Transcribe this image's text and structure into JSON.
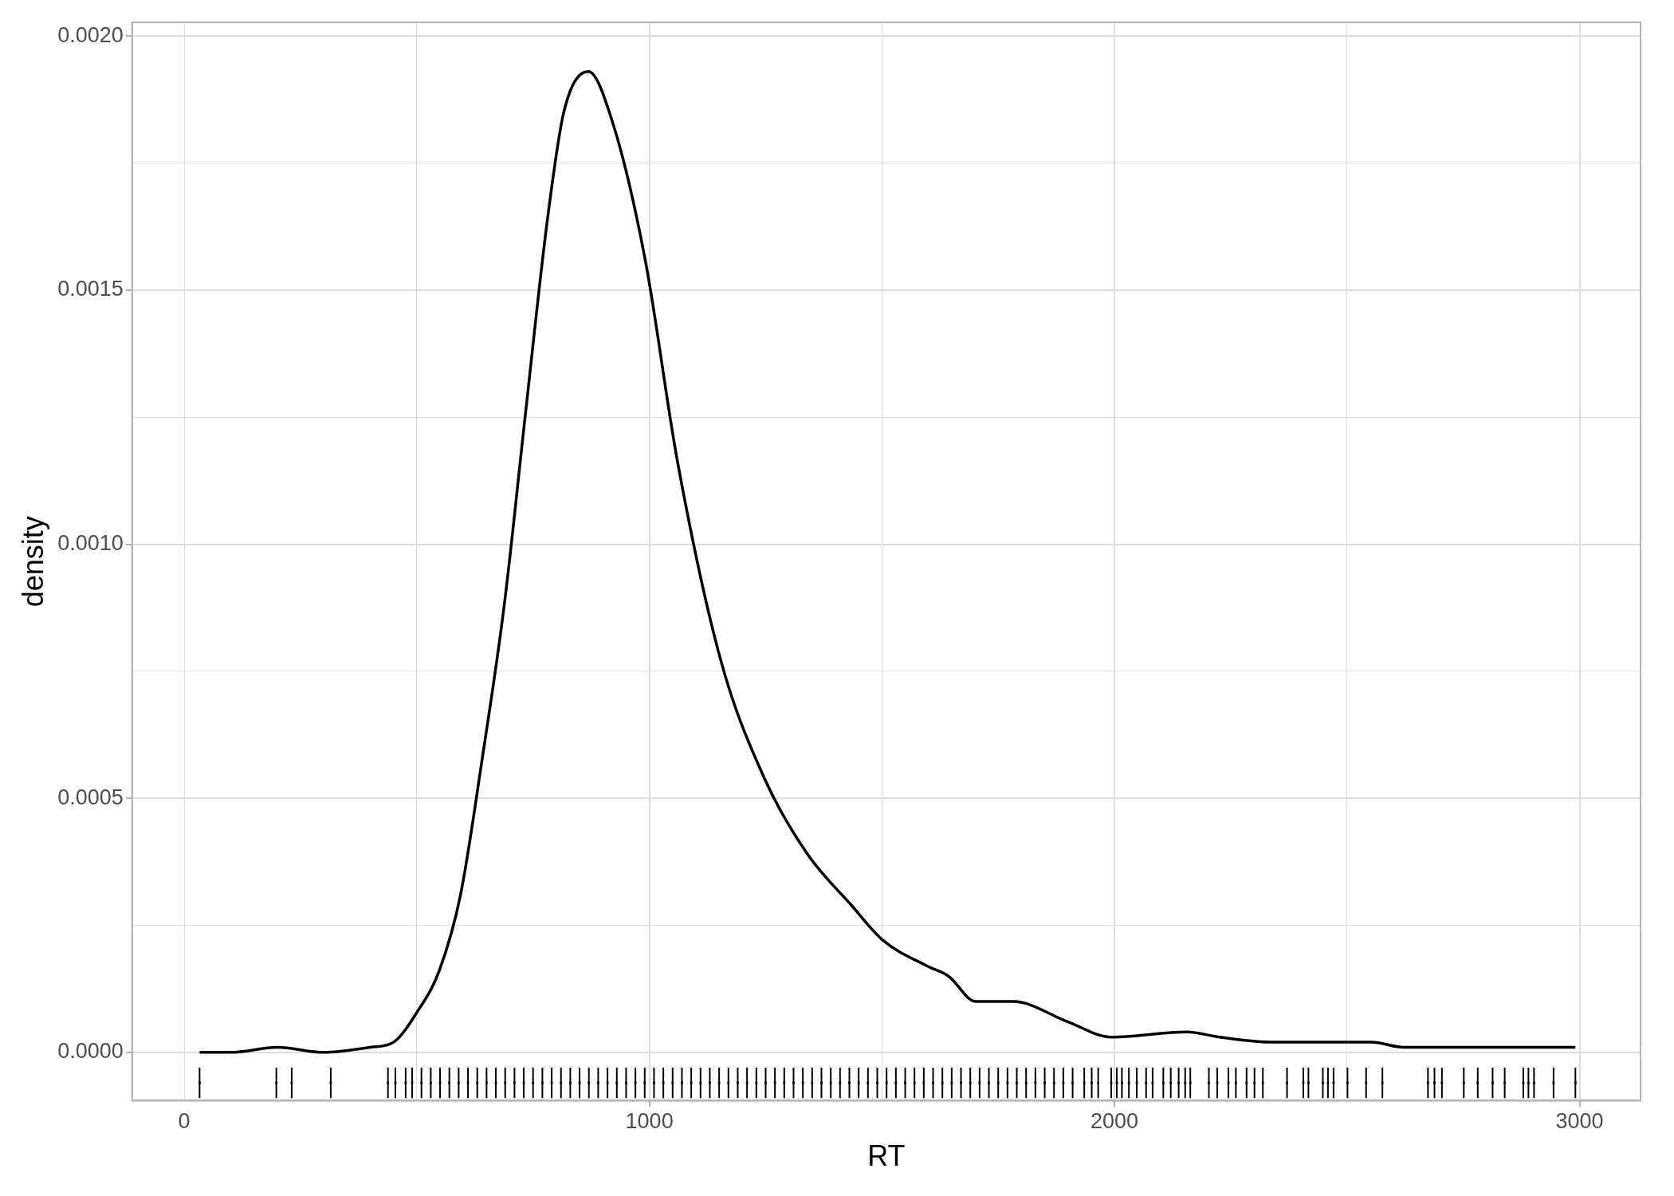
{
  "chart_data": {
    "type": "line",
    "xlabel": "RT",
    "ylabel": "density",
    "grid": true,
    "legend": false,
    "marker": "none",
    "line_style": "solid",
    "xlim": [
      -112,
      3131
    ],
    "ylim": [
      -9.5e-05,
      0.002027
    ],
    "xticks": [
      0,
      {
        "value": 500,
        "label": null
      },
      1000,
      {
        "value": 1500,
        "label": null
      },
      2000,
      {
        "value": 2500,
        "label": null
      },
      3000
    ],
    "yticks": [
      {
        "value": 0,
        "label": "0.0000"
      },
      {
        "value": 0.00025,
        "label": null
      },
      {
        "value": 0.0005,
        "label": "0.0005"
      },
      {
        "value": 0.00075,
        "label": null
      },
      {
        "value": 0.001,
        "label": "0.0010"
      },
      {
        "value": 0.00125,
        "label": null
      },
      {
        "value": 0.0015,
        "label": "0.0015"
      },
      {
        "value": 0.00175,
        "label": null
      },
      {
        "value": 0.002,
        "label": "0.0020"
      }
    ],
    "series": [
      {
        "color": "#000000",
        "x": [
          33,
          100,
          200,
          300,
          400,
          450,
          501,
          548,
          594,
          641,
          688,
          734,
          781,
          816,
          869,
          921,
          991,
          1061,
          1154,
          1247,
          1340,
          1434,
          1503,
          1597,
          1643,
          1702,
          1783,
          1900,
          1993,
          2156,
          2226,
          2343,
          2413,
          2552,
          2622,
          2692,
          2832,
          2895,
          2991
        ],
        "values": [
          0,
          0,
          1e-05,
          0,
          1e-05,
          2e-05,
          8e-05,
          0.00016,
          0.00031,
          0.00058,
          0.00088,
          0.00126,
          0.00164,
          0.00185,
          0.00193,
          0.00183,
          0.00156,
          0.00116,
          0.00077,
          0.00054,
          0.00039,
          0.00029,
          0.00022,
          0.00017,
          0.00015,
          0.0001,
          0.0001,
          6e-05,
          3e-05,
          4e-05,
          3e-05,
          2e-05,
          2e-05,
          2e-05,
          1e-05,
          1e-05,
          1e-05,
          1e-05,
          1e-05
        ]
      },
      {
        "type": "scatter",
        "color": "#000000",
        "marker": "square",
        "errors": [
          3e-05,
          3e-05,
          3e-05,
          3e-05,
          3e-05,
          3e-05,
          3e-05,
          3e-05,
          3e-05,
          3e-05,
          3e-05,
          3e-05,
          3e-05,
          3e-05,
          3e-05,
          3e-05,
          3e-05,
          3e-05,
          3e-05,
          3e-05,
          3e-05,
          3e-05,
          3e-05,
          3e-05,
          3e-05,
          3e-05,
          3e-05,
          3e-05,
          3e-05,
          3e-05,
          3e-05,
          3e-05,
          3e-05,
          3e-05,
          3e-05,
          3e-05,
          3e-05,
          3e-05,
          3e-05,
          3e-05,
          3e-05,
          3e-05,
          3e-05,
          3e-05,
          3e-05,
          3e-05,
          3e-05,
          3e-05,
          3e-05,
          3e-05,
          3e-05,
          3e-05,
          3e-05,
          3e-05,
          3e-05,
          3e-05,
          3e-05,
          3e-05,
          3e-05,
          3e-05,
          3e-05,
          3e-05,
          3e-05,
          3e-05,
          3e-05,
          3e-05,
          3e-05,
          3e-05,
          3e-05,
          3e-05,
          3e-05,
          3e-05,
          3e-05,
          3e-05,
          3e-05,
          3e-05,
          3e-05,
          3e-05,
          3e-05,
          3e-05,
          3e-05,
          3e-05,
          3e-05,
          3e-05,
          3e-05,
          3e-05,
          3e-05,
          3e-05,
          3e-05,
          3e-05,
          3e-05,
          3e-05,
          3e-05,
          3e-05,
          3e-05,
          3e-05,
          3e-05,
          3e-05,
          3e-05,
          3e-05,
          3e-05,
          3e-05,
          3e-05,
          3e-05,
          3e-05,
          3e-05,
          3e-05,
          3e-05,
          3e-05,
          3e-05,
          3e-05,
          3e-05,
          3e-05,
          3e-05,
          3e-05,
          3e-05,
          3e-05,
          3e-05,
          3e-05,
          3e-05,
          3e-05,
          3e-05
        ],
        "x": [
          33,
          198,
          231,
          315,
          438,
          454,
          476,
          490,
          510,
          530,
          550,
          570,
          590,
          610,
          630,
          650,
          670,
          690,
          710,
          730,
          750,
          770,
          790,
          810,
          830,
          850,
          870,
          890,
          910,
          930,
          950,
          970,
          990,
          1010,
          1030,
          1050,
          1070,
          1090,
          1110,
          1130,
          1150,
          1170,
          1190,
          1210,
          1230,
          1250,
          1270,
          1290,
          1310,
          1330,
          1350,
          1370,
          1390,
          1410,
          1430,
          1450,
          1470,
          1490,
          1510,
          1530,
          1550,
          1570,
          1590,
          1610,
          1630,
          1650,
          1670,
          1690,
          1710,
          1730,
          1750,
          1770,
          1790,
          1810,
          1830,
          1850,
          1870,
          1890,
          1910,
          1935,
          1951,
          1965,
          1993,
          2005,
          2016,
          2031,
          2048,
          2068,
          2082,
          2105,
          2121,
          2138,
          2152,
          2163,
          2203,
          2221,
          2245,
          2261,
          2284,
          2301,
          2319,
          2371,
          2406,
          2417,
          2448,
          2459,
          2471,
          2501,
          2541,
          2576,
          2674,
          2688,
          2704,
          2751,
          2781,
          2813,
          2839,
          2879,
          2890,
          2902,
          2944,
          2991
        ],
        "values": [
          -6e-05,
          -6e-05,
          -6e-05,
          -6e-05,
          -6e-05,
          -6e-05,
          -6e-05,
          -6e-05,
          -6e-05,
          -6e-05,
          -6e-05,
          -6e-05,
          -6e-05,
          -6e-05,
          -6e-05,
          -6e-05,
          -6e-05,
          -6e-05,
          -6e-05,
          -6e-05,
          -6e-05,
          -6e-05,
          -6e-05,
          -6e-05,
          -6e-05,
          -6e-05,
          -6e-05,
          -6e-05,
          -6e-05,
          -6e-05,
          -6e-05,
          -6e-05,
          -6e-05,
          -6e-05,
          -6e-05,
          -6e-05,
          -6e-05,
          -6e-05,
          -6e-05,
          -6e-05,
          -6e-05,
          -6e-05,
          -6e-05,
          -6e-05,
          -6e-05,
          -6e-05,
          -6e-05,
          -6e-05,
          -6e-05,
          -6e-05,
          -6e-05,
          -6e-05,
          -6e-05,
          -6e-05,
          -6e-05,
          -6e-05,
          -6e-05,
          -6e-05,
          -6e-05,
          -6e-05,
          -6e-05,
          -6e-05,
          -6e-05,
          -6e-05,
          -6e-05,
          -6e-05,
          -6e-05,
          -6e-05,
          -6e-05,
          -6e-05,
          -6e-05,
          -6e-05,
          -6e-05,
          -6e-05,
          -6e-05,
          -6e-05,
          -6e-05,
          -6e-05,
          -6e-05,
          -6e-05,
          -6e-05,
          -6e-05,
          -6e-05,
          -6e-05,
          -6e-05,
          -6e-05,
          -6e-05,
          -6e-05,
          -6e-05,
          -6e-05,
          -6e-05,
          -6e-05,
          -6e-05,
          -6e-05,
          -6e-05,
          -6e-05,
          -6e-05,
          -6e-05,
          -6e-05,
          -6e-05,
          -6e-05,
          -6e-05,
          -6e-05,
          -6e-05,
          -6e-05,
          -6e-05,
          -6e-05,
          -6e-05,
          -6e-05,
          -6e-05,
          -6e-05,
          -6e-05,
          -6e-05,
          -6e-05,
          -6e-05,
          -6e-05,
          -6e-05,
          -6e-05,
          -6e-05,
          -6e-05,
          -6e-05,
          -6e-05
        ]
      }
    ]
  }
}
